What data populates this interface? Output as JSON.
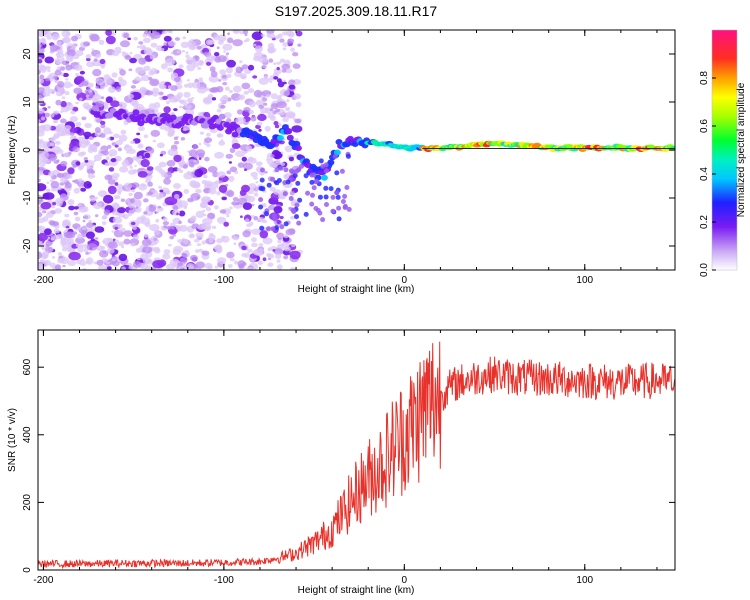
{
  "title": "S197.2025.309.18.11.R17",
  "chart_data": [
    {
      "type": "heatmap",
      "xlabel": "Height of straight line (km)",
      "ylabel": "Frequency (Hz)",
      "xlim": [
        -203,
        150
      ],
      "ylim": [
        -25,
        25
      ],
      "xticks": [
        -200,
        -100,
        0,
        100
      ],
      "yticks": [
        -20,
        -10,
        0,
        10,
        20
      ],
      "colorbar": {
        "label": "Normalized spectral amplitude",
        "range": [
          0,
          1
        ],
        "ticks": [
          0.0,
          0.2,
          0.4,
          0.6,
          0.8
        ]
      },
      "ridge": [
        {
          "x": -155,
          "y": 7.5
        },
        {
          "x": -145,
          "y": 6.5
        },
        {
          "x": -130,
          "y": 6
        },
        {
          "x": -105,
          "y": 6
        },
        {
          "x": -95,
          "y": 5
        },
        {
          "x": -85,
          "y": 3
        },
        {
          "x": -75,
          "y": 1
        },
        {
          "x": -65,
          "y": 4
        },
        {
          "x": -55,
          "y": -3
        },
        {
          "x": -45,
          "y": -5
        },
        {
          "x": -35,
          "y": 1
        },
        {
          "x": -25,
          "y": 2
        },
        {
          "x": -15,
          "y": 1.5
        },
        {
          "x": 0,
          "y": 0.5
        },
        {
          "x": 20,
          "y": 0.3
        },
        {
          "x": 50,
          "y": 1.5
        },
        {
          "x": 80,
          "y": 0.5
        },
        {
          "x": 150,
          "y": 0.3
        }
      ]
    },
    {
      "type": "line",
      "xlabel": "Height of straight line (km)",
      "ylabel": "SNR (10 * v/v)",
      "xlim": [
        -203,
        150
      ],
      "ylim": [
        0,
        710
      ],
      "xticks": [
        -200,
        -100,
        0,
        100
      ],
      "yticks": [
        0,
        200,
        400,
        600
      ],
      "series": [
        {
          "name": "SNR",
          "color": "#e8312a",
          "x": [
            -203,
            -180,
            -150,
            -120,
            -100,
            -80,
            -70,
            -60,
            -50,
            -40,
            -35,
            -30,
            -25,
            -20,
            -15,
            -10,
            -5,
            0,
            5,
            10,
            15,
            20,
            25,
            30,
            40,
            50,
            60,
            80,
            100,
            120,
            140,
            150
          ],
          "mean": [
            18,
            18,
            20,
            20,
            22,
            25,
            35,
            50,
            80,
            120,
            160,
            200,
            240,
            270,
            300,
            330,
            370,
            400,
            430,
            470,
            500,
            520,
            540,
            555,
            570,
            580,
            570,
            565,
            560,
            555,
            560,
            555
          ]
        }
      ]
    }
  ]
}
